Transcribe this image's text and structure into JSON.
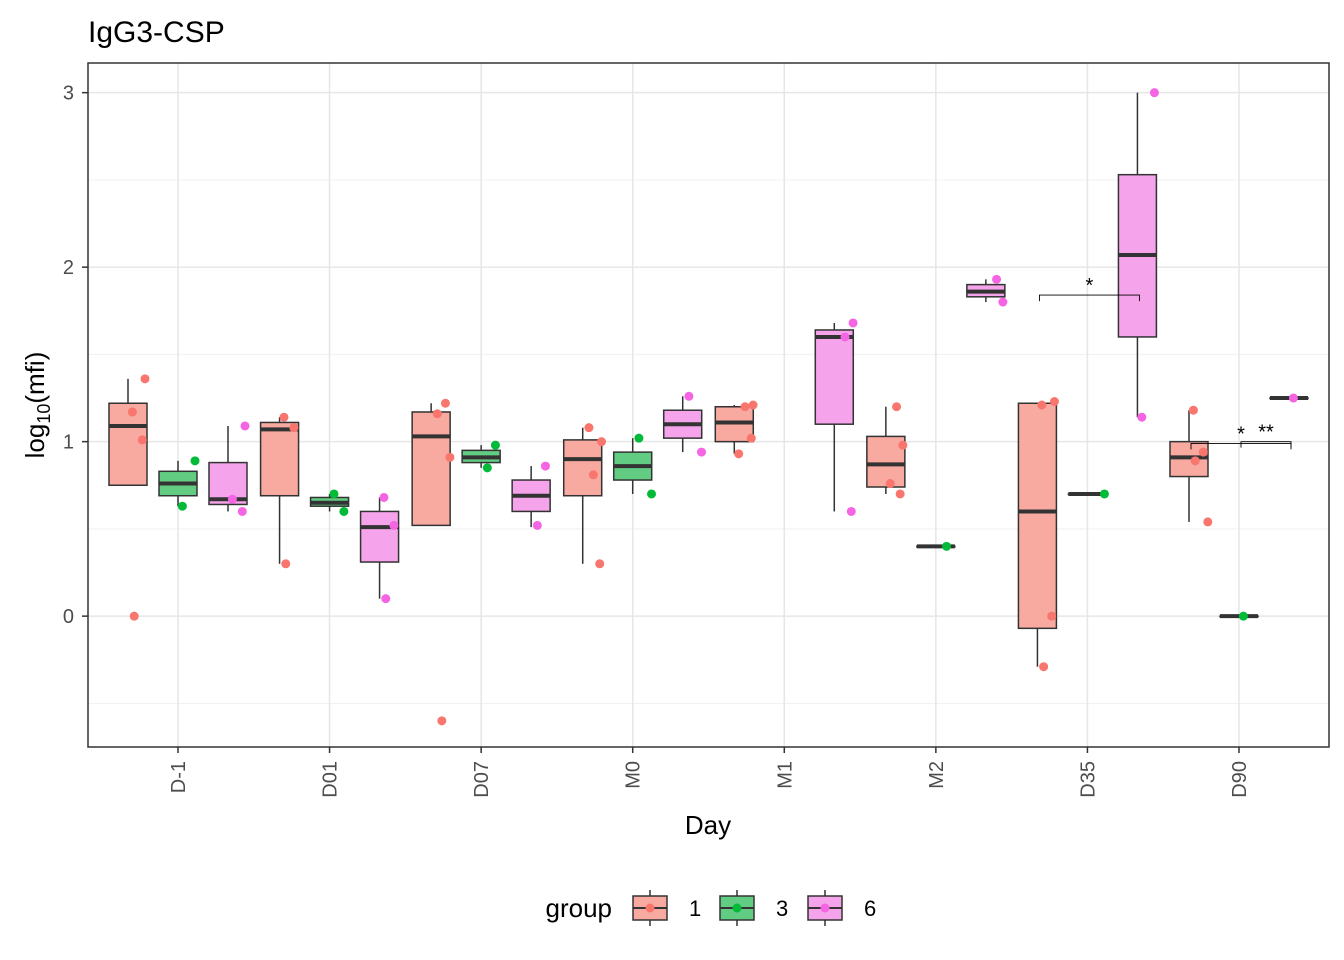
{
  "chart_data": {
    "type": "boxplot",
    "title": "IgG3-CSP",
    "xlabel": "Day",
    "ylabel": "log10(mfi)",
    "ylim": [
      -0.75,
      3.17
    ],
    "y_ticks": [
      0,
      1,
      2,
      3
    ],
    "grid": true,
    "legend_position": "bottom",
    "legend_title": "group",
    "categories": [
      "D-1",
      "D01",
      "D07",
      "M0",
      "M1",
      "M2",
      "D35",
      "D90"
    ],
    "groups": [
      {
        "name": "1",
        "fill": "#f8a9a0",
        "point": "#f8766d"
      },
      {
        "name": "3",
        "fill": "#63cc83",
        "point": "#00ba38"
      },
      {
        "name": "6",
        "fill": "#f5a3ea",
        "point": "#f564e3"
      }
    ],
    "boxes": [
      {
        "category": "D-1",
        "group": "1",
        "q1": 0.75,
        "median": 1.09,
        "q3": 1.22,
        "whisker_low": 0.75,
        "whisker_high": 1.36
      },
      {
        "category": "D-1",
        "group": "3",
        "q1": 0.69,
        "median": 0.76,
        "q3": 0.83,
        "whisker_low": 0.63,
        "whisker_high": 0.89
      },
      {
        "category": "D-1",
        "group": "6",
        "q1": 0.64,
        "median": 0.67,
        "q3": 0.88,
        "whisker_low": 0.6,
        "whisker_high": 1.09
      },
      {
        "category": "D01",
        "group": "1",
        "q1": 0.69,
        "median": 1.07,
        "q3": 1.11,
        "whisker_low": 0.3,
        "whisker_high": 1.14
      },
      {
        "category": "D01",
        "group": "3",
        "q1": 0.63,
        "median": 0.65,
        "q3": 0.68,
        "whisker_low": 0.6,
        "whisker_high": 0.7
      },
      {
        "category": "D01",
        "group": "6",
        "q1": 0.31,
        "median": 0.51,
        "q3": 0.6,
        "whisker_low": 0.1,
        "whisker_high": 0.68
      },
      {
        "category": "D07",
        "group": "1",
        "q1": 0.52,
        "median": 1.03,
        "q3": 1.17,
        "whisker_low": 0.52,
        "whisker_high": 1.22
      },
      {
        "category": "D07",
        "group": "3",
        "q1": 0.88,
        "median": 0.91,
        "q3": 0.95,
        "whisker_low": 0.85,
        "whisker_high": 0.98
      },
      {
        "category": "D07",
        "group": "6",
        "q1": 0.6,
        "median": 0.69,
        "q3": 0.78,
        "whisker_low": 0.51,
        "whisker_high": 0.86
      },
      {
        "category": "M0",
        "group": "1",
        "q1": 0.69,
        "median": 0.9,
        "q3": 1.01,
        "whisker_low": 0.3,
        "whisker_high": 1.08
      },
      {
        "category": "M0",
        "group": "3",
        "q1": 0.78,
        "median": 0.86,
        "q3": 0.94,
        "whisker_low": 0.7,
        "whisker_high": 1.02
      },
      {
        "category": "M0",
        "group": "6",
        "q1": 1.02,
        "median": 1.1,
        "q3": 1.18,
        "whisker_low": 0.94,
        "whisker_high": 1.26
      },
      {
        "category": "M1",
        "group": "1",
        "q1": 1.0,
        "median": 1.11,
        "q3": 1.2,
        "whisker_low": 0.93,
        "whisker_high": 1.21
      },
      {
        "category": "M1",
        "group": "6",
        "q1": 1.1,
        "median": 1.6,
        "q3": 1.64,
        "whisker_low": 0.6,
        "whisker_high": 1.68
      },
      {
        "category": "M2",
        "group": "1",
        "q1": 0.74,
        "median": 0.87,
        "q3": 1.03,
        "whisker_low": 0.7,
        "whisker_high": 1.2
      },
      {
        "category": "M2",
        "group": "3",
        "q1": 0.4,
        "median": 0.4,
        "q3": 0.4,
        "whisker_low": 0.4,
        "whisker_high": 0.4
      },
      {
        "category": "M2",
        "group": "6",
        "q1": 1.83,
        "median": 1.86,
        "q3": 1.9,
        "whisker_low": 1.8,
        "whisker_high": 1.93
      },
      {
        "category": "D35",
        "group": "1",
        "q1": -0.07,
        "median": 0.6,
        "q3": 1.22,
        "whisker_low": -0.29,
        "whisker_high": 1.22
      },
      {
        "category": "D35",
        "group": "3",
        "q1": 0.7,
        "median": 0.7,
        "q3": 0.7,
        "whisker_low": 0.7,
        "whisker_high": 0.7
      },
      {
        "category": "D35",
        "group": "6",
        "q1": 1.6,
        "median": 2.07,
        "q3": 2.53,
        "whisker_low": 1.14,
        "whisker_high": 3.0
      },
      {
        "category": "D90",
        "group": "1",
        "q1": 0.8,
        "median": 0.91,
        "q3": 1.0,
        "whisker_low": 0.54,
        "whisker_high": 1.18
      },
      {
        "category": "D90",
        "group": "3",
        "q1": 0.0,
        "median": 0.0,
        "q3": 0.0,
        "whisker_low": 0.0,
        "whisker_high": 0.0
      },
      {
        "category": "D90",
        "group": "6",
        "q1": 1.25,
        "median": 1.25,
        "q3": 1.25,
        "whisker_low": 1.25,
        "whisker_high": 1.25
      }
    ],
    "points": [
      {
        "category": "D-1",
        "group": "1",
        "values": [
          1.36,
          1.17,
          1.01,
          0.0
        ]
      },
      {
        "category": "D-1",
        "group": "3",
        "values": [
          0.89,
          0.63
        ]
      },
      {
        "category": "D-1",
        "group": "6",
        "values": [
          1.09,
          0.67,
          0.6
        ]
      },
      {
        "category": "D01",
        "group": "1",
        "values": [
          1.14,
          1.08,
          0.3
        ]
      },
      {
        "category": "D01",
        "group": "3",
        "values": [
          0.7,
          0.6
        ]
      },
      {
        "category": "D01",
        "group": "6",
        "values": [
          0.68,
          0.52,
          0.1
        ]
      },
      {
        "category": "D07",
        "group": "1",
        "values": [
          1.22,
          1.16,
          0.91,
          -0.6
        ]
      },
      {
        "category": "D07",
        "group": "3",
        "values": [
          0.98,
          0.85
        ]
      },
      {
        "category": "D07",
        "group": "6",
        "values": [
          0.86,
          0.52
        ]
      },
      {
        "category": "M0",
        "group": "1",
        "values": [
          1.08,
          1.0,
          0.81,
          0.3
        ]
      },
      {
        "category": "M0",
        "group": "3",
        "values": [
          1.02,
          0.7
        ]
      },
      {
        "category": "M0",
        "group": "6",
        "values": [
          1.26,
          0.94
        ]
      },
      {
        "category": "M1",
        "group": "1",
        "values": [
          1.21,
          1.2,
          1.02,
          0.93
        ]
      },
      {
        "category": "M1",
        "group": "6",
        "values": [
          1.68,
          1.6,
          0.6
        ]
      },
      {
        "category": "M2",
        "group": "1",
        "values": [
          1.2,
          0.98,
          0.76,
          0.7
        ]
      },
      {
        "category": "M2",
        "group": "3",
        "values": [
          0.4
        ]
      },
      {
        "category": "M2",
        "group": "6",
        "values": [
          1.93,
          1.8
        ]
      },
      {
        "category": "D35",
        "group": "1",
        "values": [
          1.23,
          1.21,
          0.0,
          -0.29
        ]
      },
      {
        "category": "D35",
        "group": "3",
        "values": [
          0.7
        ]
      },
      {
        "category": "D35",
        "group": "6",
        "values": [
          3.0,
          1.14
        ]
      },
      {
        "category": "D90",
        "group": "1",
        "values": [
          1.18,
          0.94,
          0.89,
          0.54
        ]
      },
      {
        "category": "D90",
        "group": "3",
        "values": [
          0.0
        ]
      },
      {
        "category": "D90",
        "group": "6",
        "values": [
          1.25
        ]
      }
    ],
    "annotations": [
      {
        "category": "D35",
        "from_group": "1",
        "to_group": "6",
        "label": "*",
        "y": 1.84
      },
      {
        "category": "D90",
        "from_group": "1",
        "to_group": "6",
        "label": "*",
        "y": 0.99
      },
      {
        "category": "D90",
        "from_group": "3",
        "to_group": "6",
        "label": "**",
        "y": 1.0
      }
    ]
  }
}
